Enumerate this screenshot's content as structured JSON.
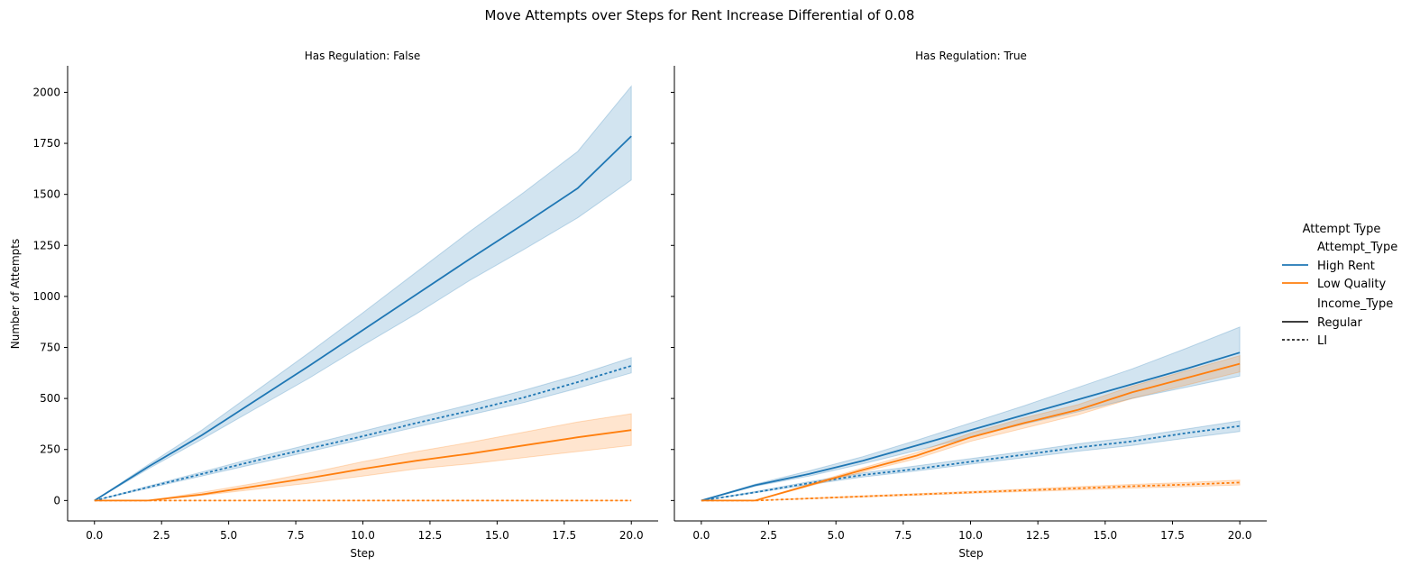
{
  "chart_data": {
    "type": "line",
    "title": "Move Attempts over Steps for Rent Increase Differential of 0.08",
    "xlabel": "Step",
    "ylabel": "Number of Attempts",
    "xlim": [
      -1,
      21
    ],
    "ylim": [
      -100,
      2130
    ],
    "xticks": [
      0.0,
      2.5,
      5.0,
      7.5,
      10.0,
      12.5,
      15.0,
      17.5,
      20.0
    ],
    "xtick_labels": [
      "0.0",
      "2.5",
      "5.0",
      "7.5",
      "10.0",
      "12.5",
      "15.0",
      "17.5",
      "20.0"
    ],
    "yticks": [
      0,
      250,
      500,
      750,
      1000,
      1250,
      1500,
      1750,
      2000
    ],
    "ytick_labels": [
      "0",
      "250",
      "500",
      "750",
      "1000",
      "1250",
      "1500",
      "1750",
      "2000"
    ],
    "grid": false,
    "colors": {
      "High Rent": "#1f77b4",
      "Low Quality": "#ff7f0e"
    },
    "legend": {
      "title": "Attempt Type",
      "subtitle1": "Attempt_Type",
      "entry1": "High Rent",
      "entry2": "Low Quality",
      "subtitle2": "Income_Type",
      "entry3": "Regular",
      "entry4": "LI",
      "placement": "right"
    },
    "panels": [
      {
        "title": "Has Regulation: False",
        "series": [
          {
            "attempt": "High Rent",
            "income": "Regular",
            "x": [
              0,
              2,
              4,
              6,
              8,
              10,
              12,
              14,
              16,
              18,
              20
            ],
            "y": [
              0,
              165,
              320,
              490,
              660,
              835,
              1010,
              1185,
              1355,
              1530,
              1785
            ],
            "lower": [
              0,
              155,
              300,
              450,
              600,
              760,
              915,
              1080,
              1230,
              1385,
              1570
            ],
            "upper": [
              0,
              175,
              345,
              535,
              725,
              920,
              1120,
              1320,
              1510,
              1710,
              2030
            ]
          },
          {
            "attempt": "High Rent",
            "income": "LI",
            "x": [
              0,
              2,
              4,
              6,
              8,
              10,
              12,
              14,
              16,
              18,
              20
            ],
            "y": [
              0,
              65,
              130,
              195,
              255,
              315,
              380,
              440,
              505,
              580,
              660
            ],
            "lower": [
              0,
              60,
              120,
              180,
              240,
              300,
              360,
              420,
              480,
              550,
              625
            ],
            "upper": [
              0,
              70,
              140,
              210,
              275,
              340,
              405,
              470,
              540,
              615,
              700
            ]
          },
          {
            "attempt": "Low Quality",
            "income": "Regular",
            "x": [
              0,
              2,
              4,
              6,
              8,
              10,
              12,
              14,
              16,
              18,
              20
            ],
            "y": [
              0,
              0,
              30,
              70,
              110,
              155,
              195,
              230,
              270,
              310,
              345
            ],
            "lower": [
              0,
              0,
              25,
              55,
              85,
              120,
              155,
              180,
              210,
              240,
              270
            ],
            "upper": [
              0,
              0,
              40,
              85,
              135,
              190,
              240,
              285,
              335,
              385,
              425
            ]
          },
          {
            "attempt": "Low Quality",
            "income": "LI",
            "x": [
              0,
              2,
              4,
              6,
              8,
              10,
              12,
              14,
              16,
              18,
              20
            ],
            "y": [
              0,
              0,
              0,
              0,
              0,
              0,
              0,
              0,
              0,
              0,
              0
            ],
            "lower": [
              0,
              0,
              0,
              0,
              0,
              0,
              0,
              0,
              0,
              0,
              0
            ],
            "upper": [
              0,
              0,
              0,
              0,
              0,
              0,
              0,
              0,
              0,
              0,
              0
            ]
          }
        ]
      },
      {
        "title": "Has Regulation: True",
        "series": [
          {
            "attempt": "High Rent",
            "income": "Regular",
            "x": [
              0,
              2,
              4,
              6,
              8,
              10,
              12,
              14,
              16,
              18,
              20
            ],
            "y": [
              0,
              75,
              130,
              195,
              270,
              345,
              420,
              495,
              570,
              645,
              725
            ],
            "lower": [
              0,
              70,
              120,
              180,
              245,
              310,
              375,
              435,
              500,
              555,
              610
            ],
            "upper": [
              0,
              80,
              145,
              215,
              295,
              380,
              465,
              555,
              645,
              745,
              850
            ]
          },
          {
            "attempt": "High Rent",
            "income": "LI",
            "x": [
              0,
              2,
              4,
              6,
              8,
              10,
              12,
              14,
              16,
              18,
              20
            ],
            "y": [
              0,
              40,
              85,
              125,
              155,
              190,
              225,
              260,
              290,
              330,
              365
            ],
            "lower": [
              0,
              38,
              78,
              115,
              145,
              178,
              210,
              242,
              270,
              305,
              338
            ],
            "upper": [
              0,
              44,
              92,
              135,
              170,
              205,
              240,
              278,
              310,
              350,
              390
            ]
          },
          {
            "attempt": "Low Quality",
            "income": "Regular",
            "x": [
              0,
              2,
              4,
              6,
              8,
              10,
              12,
              14,
              16,
              18,
              20
            ],
            "y": [
              0,
              0,
              75,
              150,
              220,
              310,
              380,
              445,
              530,
              600,
              670
            ],
            "lower": [
              0,
              0,
              70,
              140,
              205,
              290,
              355,
              420,
              500,
              565,
              630
            ],
            "upper": [
              0,
              0,
              80,
              160,
              235,
              330,
              405,
              470,
              560,
              635,
              710
            ]
          },
          {
            "attempt": "Low Quality",
            "income": "LI",
            "x": [
              0,
              2,
              4,
              6,
              8,
              10,
              12,
              14,
              16,
              18,
              20
            ],
            "y": [
              0,
              0,
              10,
              20,
              30,
              40,
              50,
              60,
              70,
              78,
              88
            ],
            "lower": [
              0,
              0,
              8,
              17,
              26,
              35,
              44,
              52,
              61,
              68,
              76
            ],
            "upper": [
              0,
              0,
              12,
              23,
              34,
              45,
              56,
              68,
              79,
              88,
              100
            ]
          }
        ]
      }
    ]
  }
}
